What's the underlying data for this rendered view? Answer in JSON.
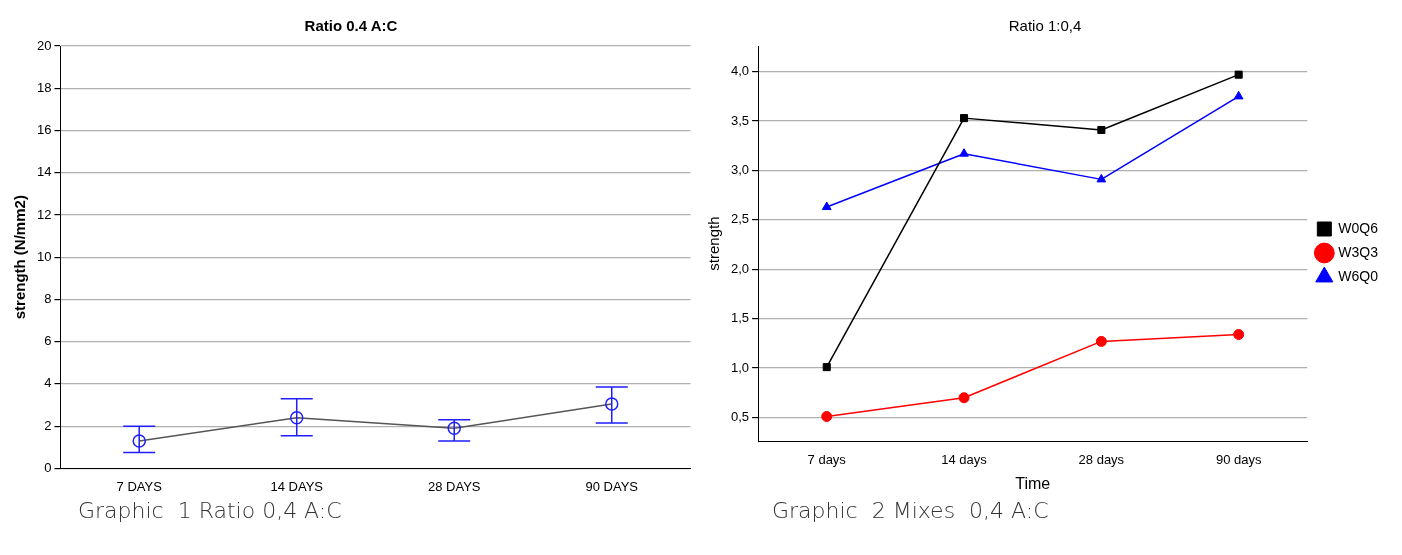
{
  "chart_data": [
    {
      "type": "line",
      "title": "Ratio 0.4 A:C",
      "ylabel": "strength (N/mm2)",
      "categories": [
        "7 DAYS",
        "14 DAYS",
        "28 DAYS",
        "90 DAYS"
      ],
      "series": [
        {
          "color": "#1f1fff",
          "values": [
            1.3,
            2.4,
            1.9,
            3.05
          ],
          "errors": [
            [
              0.75,
              2.0
            ],
            [
              1.55,
              3.3
            ],
            [
              1.3,
              2.3
            ],
            [
              2.15,
              3.85
            ]
          ],
          "marker": "circle"
        }
      ],
      "ylim": [
        0,
        20
      ],
      "yticks": [
        0,
        2,
        4,
        6,
        8,
        10,
        12,
        14,
        16,
        18,
        20
      ],
      "grid": "y",
      "legend": false,
      "annotations": [
        "Graphic  1 Ratio 0,4 A:C"
      ]
    },
    {
      "type": "line",
      "title": "Ratio 1:0,4",
      "xlabel": "Time",
      "ylabel": "strength",
      "categories": [
        "7 days",
        "14 days",
        "28 days",
        "90 days"
      ],
      "series": [
        {
          "name": "W0Q6",
          "color": "#000000",
          "values": [
            1.01,
            3.53,
            3.41,
            3.97
          ],
          "marker": "square"
        },
        {
          "name": "W3Q3",
          "color": "#ff0000",
          "values": [
            0.51,
            0.7,
            1.27,
            1.34
          ],
          "marker": "circle"
        },
        {
          "name": "W6Q0",
          "color": "#0000ff",
          "values": [
            2.63,
            3.17,
            2.91,
            3.75
          ],
          "marker": "triangle"
        }
      ],
      "ylim": [
        0.26,
        4.26
      ],
      "yticks": [
        {
          "value": 0.5,
          "label": "0,5"
        },
        {
          "value": 1,
          "label": "1,0"
        },
        {
          "value": 1.5,
          "label": "1,5"
        },
        {
          "value": 2,
          "label": "2,0"
        },
        {
          "value": 2.5,
          "label": "2,5"
        },
        {
          "value": 3,
          "label": "3,0"
        },
        {
          "value": 3.5,
          "label": "3,5"
        },
        {
          "value": 4,
          "label": "4,0"
        }
      ],
      "grid": "y",
      "legend": "right",
      "annotations": [
        "Graphic  2 Mixes  0,4 A:C"
      ]
    }
  ]
}
